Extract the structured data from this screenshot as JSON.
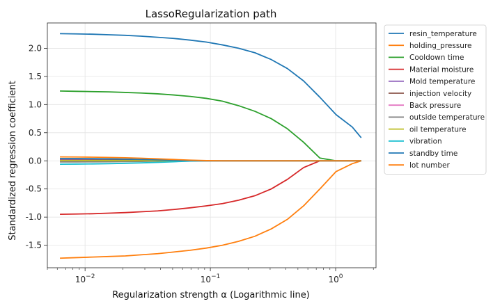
{
  "chart_data": {
    "type": "line",
    "title": "LassoRegularization path",
    "xlabel": "Regularization strength α (Logarithmic line)",
    "ylabel": "Standardized regression coefficient",
    "x_scale": "log",
    "xlim": [
      0.005,
      2.1
    ],
    "ylim": [
      -1.9,
      2.45
    ],
    "x_ticks": [
      {
        "value": 0.01,
        "base": "10",
        "exp": "−2"
      },
      {
        "value": 0.1,
        "base": "10",
        "exp": "−1"
      },
      {
        "value": 1,
        "base": "10",
        "exp": "0"
      }
    ],
    "y_ticks": [
      {
        "value": 2.0,
        "label": "2.0"
      },
      {
        "value": 1.5,
        "label": "1.5"
      },
      {
        "value": 1.0,
        "label": "1.0"
      },
      {
        "value": 0.5,
        "label": "0.5"
      },
      {
        "value": 0.0,
        "label": "0.0"
      },
      {
        "value": -0.5,
        "label": "-0.5"
      },
      {
        "value": -1.0,
        "label": "-1.0"
      },
      {
        "value": -1.5,
        "label": "-1.5"
      }
    ],
    "grid": true,
    "legend_position": "outside-right",
    "x": [
      0.0063,
      0.0085,
      0.0115,
      0.0155,
      0.021,
      0.028,
      0.038,
      0.051,
      0.069,
      0.093,
      0.125,
      0.168,
      0.227,
      0.306,
      0.412,
      0.555,
      0.748,
      1.008,
      1.358,
      1.6
    ],
    "series": [
      {
        "name": "resin_temperature",
        "color": "#1f77b4",
        "values": [
          2.26,
          2.255,
          2.25,
          2.24,
          2.23,
          2.215,
          2.195,
          2.175,
          2.145,
          2.11,
          2.06,
          2.0,
          1.92,
          1.8,
          1.64,
          1.42,
          1.13,
          0.82,
          0.6,
          0.41
        ]
      },
      {
        "name": "holding_pressure",
        "color": "#ff7f0e",
        "values": [
          -1.73,
          -1.72,
          -1.71,
          -1.7,
          -1.69,
          -1.67,
          -1.65,
          -1.62,
          -1.59,
          -1.55,
          -1.5,
          -1.43,
          -1.34,
          -1.21,
          -1.04,
          -0.8,
          -0.5,
          -0.19,
          -0.05,
          0.0
        ]
      },
      {
        "name": "Cooldown time",
        "color": "#2ca02c",
        "values": [
          1.24,
          1.235,
          1.23,
          1.225,
          1.215,
          1.205,
          1.19,
          1.17,
          1.145,
          1.11,
          1.06,
          0.98,
          0.88,
          0.75,
          0.57,
          0.33,
          0.05,
          0.0,
          0.0,
          0.0
        ]
      },
      {
        "name": "Material moisture",
        "color": "#d62728",
        "values": [
          -0.95,
          -0.945,
          -0.94,
          -0.93,
          -0.92,
          -0.905,
          -0.89,
          -0.865,
          -0.835,
          -0.8,
          -0.76,
          -0.7,
          -0.62,
          -0.5,
          -0.33,
          -0.12,
          0.0,
          0.0,
          0.0,
          0.0
        ]
      },
      {
        "name": "Mold temperature",
        "color": "#9467bd",
        "values": [
          0.02,
          0.02,
          0.02,
          0.018,
          0.015,
          0.012,
          0.008,
          0.004,
          0.0,
          0.0,
          0.0,
          0.0,
          0.0,
          0.0,
          0.0,
          0.0,
          0.0,
          0.0,
          0.0,
          0.0
        ]
      },
      {
        "name": "injection velocity",
        "color": "#8c564b",
        "values": [
          0.035,
          0.033,
          0.03,
          0.028,
          0.024,
          0.02,
          0.014,
          0.007,
          0.0,
          0.0,
          0.0,
          0.0,
          0.0,
          0.0,
          0.0,
          0.0,
          0.0,
          0.0,
          0.0,
          0.0
        ]
      },
      {
        "name": "Back pressure",
        "color": "#e377c2",
        "values": [
          -0.01,
          -0.01,
          -0.009,
          -0.008,
          -0.007,
          -0.005,
          -0.003,
          -0.001,
          0.0,
          0.0,
          0.0,
          0.0,
          0.0,
          0.0,
          0.0,
          0.0,
          0.0,
          0.0,
          0.0,
          0.0
        ]
      },
      {
        "name": "outside temperature",
        "color": "#7f7f7f",
        "values": [
          -0.02,
          -0.019,
          -0.018,
          -0.016,
          -0.013,
          -0.01,
          -0.006,
          -0.002,
          0.0,
          0.0,
          0.0,
          0.0,
          0.0,
          0.0,
          0.0,
          0.0,
          0.0,
          0.0,
          0.0,
          0.0
        ]
      },
      {
        "name": "oil temperature",
        "color": "#bcbd22",
        "values": [
          0.005,
          0.005,
          0.004,
          0.004,
          0.003,
          0.002,
          0.001,
          0.0,
          0.0,
          0.0,
          0.0,
          0.0,
          0.0,
          0.0,
          0.0,
          0.0,
          0.0,
          0.0,
          0.0,
          0.0
        ]
      },
      {
        "name": "vibration",
        "color": "#17becf",
        "values": [
          -0.06,
          -0.058,
          -0.055,
          -0.05,
          -0.044,
          -0.036,
          -0.027,
          -0.016,
          -0.005,
          0.0,
          0.0,
          0.0,
          0.0,
          0.0,
          0.0,
          0.0,
          0.0,
          0.0,
          0.0,
          0.0
        ]
      },
      {
        "name": "standby time",
        "color": "#1f77b4",
        "values": [
          0.04,
          0.04,
          0.038,
          0.035,
          0.03,
          0.025,
          0.018,
          0.01,
          0.003,
          0.0,
          0.0,
          0.0,
          0.0,
          0.0,
          0.0,
          0.0,
          0.0,
          0.0,
          0.0,
          0.0
        ]
      },
      {
        "name": "lot number",
        "color": "#ff7f0e",
        "values": [
          0.07,
          0.068,
          0.065,
          0.06,
          0.054,
          0.046,
          0.036,
          0.024,
          0.012,
          0.004,
          0.0,
          0.0,
          0.0,
          0.0,
          0.0,
          0.0,
          0.0,
          0.0,
          0.0,
          0.0
        ]
      }
    ]
  }
}
